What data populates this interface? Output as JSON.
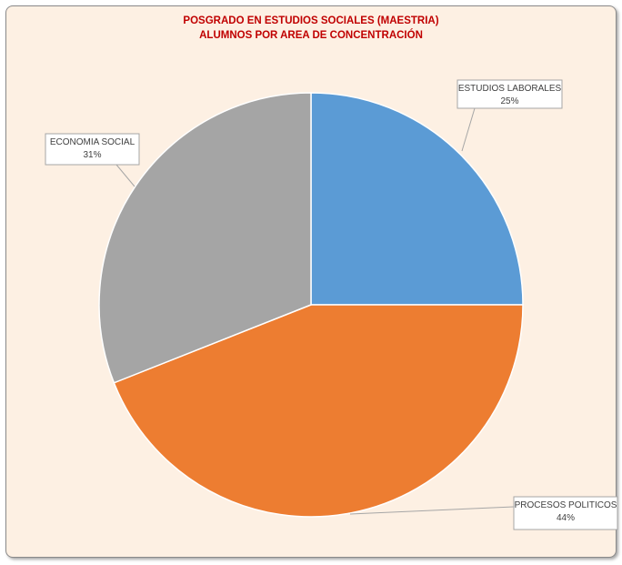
{
  "chart_data": {
    "type": "pie",
    "title": [
      "POSGRADO EN ESTUDIOS SOCIALES (MAESTRIA)",
      "ALUMNOS POR AREA DE CONCENTRACIÓN"
    ],
    "slices": [
      {
        "label": "ESTUDIOS LABORALES",
        "value": 25,
        "display": "25%",
        "color": "#5b9bd5"
      },
      {
        "label": "PROCESOS POLITICOS",
        "value": 44,
        "display": "44%",
        "color": "#ed7d31"
      },
      {
        "label": "ECONOMIA SOCIAL",
        "value": 31,
        "display": "31%",
        "color": "#a5a5a5"
      }
    ],
    "start_angle": "12 o'clock",
    "direction": "clockwise",
    "legend": "none"
  },
  "colors": {
    "background": "#fdf0e3",
    "title": "#c00000",
    "border": "#8a8a8a"
  }
}
